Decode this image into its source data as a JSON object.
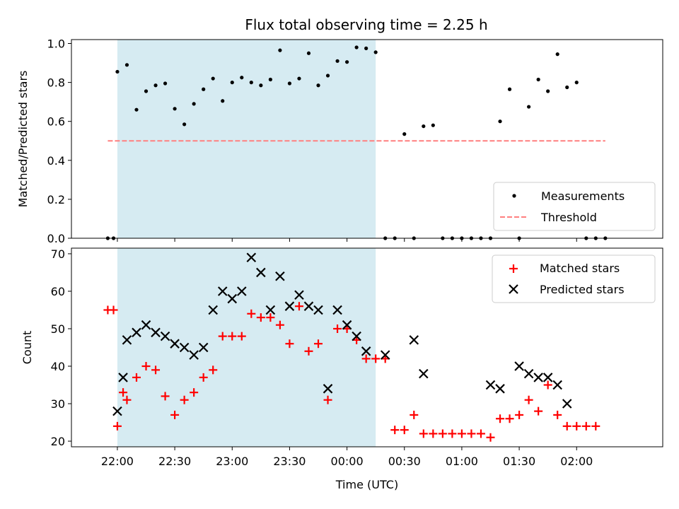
{
  "chart_data": [
    {
      "type": "scatter",
      "title": "Flux total observing time = 2.25 h",
      "ylabel": "Matched/Predicted stars",
      "xlabel": "",
      "ylim": [
        0,
        1.02
      ],
      "yticks": [
        "0.0",
        "0.2",
        "0.4",
        "0.6",
        "0.8",
        "1.0"
      ],
      "ytick_values": [
        0,
        0.2,
        0.4,
        0.6,
        0.8,
        1.0
      ],
      "legend_position": "lower-right",
      "shaded_span": {
        "start": "22:00",
        "end": "00:15",
        "color": "#add8e6"
      },
      "series": [
        {
          "name": "Measurements",
          "marker": "dot",
          "color": "#000000",
          "points": [
            [
              "21:55",
              0.0
            ],
            [
              "21:58",
              0.0
            ],
            [
              "22:00",
              0.855
            ],
            [
              "22:05",
              0.89
            ],
            [
              "22:10",
              0.66
            ],
            [
              "22:15",
              0.755
            ],
            [
              "22:20",
              0.785
            ],
            [
              "22:25",
              0.795
            ],
            [
              "22:30",
              0.665
            ],
            [
              "22:35",
              0.585
            ],
            [
              "22:40",
              0.69
            ],
            [
              "22:45",
              0.765
            ],
            [
              "22:50",
              0.82
            ],
            [
              "22:55",
              0.705
            ],
            [
              "23:00",
              0.8
            ],
            [
              "23:05",
              0.825
            ],
            [
              "23:10",
              0.8
            ],
            [
              "23:15",
              0.785
            ],
            [
              "23:20",
              0.815
            ],
            [
              "23:25",
              0.965
            ],
            [
              "23:30",
              0.795
            ],
            [
              "23:35",
              0.82
            ],
            [
              "23:40",
              0.95
            ],
            [
              "23:45",
              0.785
            ],
            [
              "23:50",
              0.835
            ],
            [
              "23:55",
              0.91
            ],
            [
              "00:00",
              0.905
            ],
            [
              "00:05",
              0.98
            ],
            [
              "00:10",
              0.975
            ],
            [
              "00:15",
              0.955
            ],
            [
              "00:20",
              0.0
            ],
            [
              "00:25",
              0.0
            ],
            [
              "00:30",
              0.535
            ],
            [
              "00:35",
              0.0
            ],
            [
              "00:40",
              0.575
            ],
            [
              "00:45",
              0.58
            ],
            [
              "00:50",
              0.0
            ],
            [
              "00:55",
              0.0
            ],
            [
              "01:00",
              0.0
            ],
            [
              "01:05",
              0.0
            ],
            [
              "01:10",
              0.0
            ],
            [
              "01:15",
              0.0
            ],
            [
              "01:20",
              0.6
            ],
            [
              "01:25",
              0.765
            ],
            [
              "01:30",
              0.0
            ],
            [
              "01:35",
              0.675
            ],
            [
              "01:40",
              0.815
            ],
            [
              "01:45",
              0.755
            ],
            [
              "01:50",
              0.945
            ],
            [
              "01:55",
              0.775
            ],
            [
              "02:00",
              0.8
            ],
            [
              "02:05",
              0.0
            ],
            [
              "02:10",
              0.0
            ],
            [
              "02:15",
              0.0
            ]
          ]
        },
        {
          "name": "Threshold",
          "marker": "dashed-line",
          "color": "#ff7f7f",
          "points": [
            [
              "21:55",
              0.5
            ],
            [
              "02:15",
              0.5
            ]
          ]
        }
      ]
    },
    {
      "type": "scatter",
      "title": "",
      "ylabel": "Count",
      "xlabel": "Time (UTC)",
      "ylim": [
        18.5,
        71.5
      ],
      "yticks": [
        "20",
        "30",
        "40",
        "50",
        "60",
        "70"
      ],
      "ytick_values": [
        20,
        30,
        40,
        50,
        60,
        70
      ],
      "xticks": [
        "22:00",
        "22:30",
        "23:00",
        "23:30",
        "00:00",
        "00:30",
        "01:00",
        "01:30",
        "02:00"
      ],
      "legend_position": "upper-right",
      "shaded_span": {
        "start": "22:00",
        "end": "00:15",
        "color": "#add8e6"
      },
      "series": [
        {
          "name": "Matched stars",
          "marker": "plus",
          "color": "#ff0000",
          "points": [
            [
              "21:55",
              55
            ],
            [
              "21:58",
              55
            ],
            [
              "22:00",
              24
            ],
            [
              "22:03",
              33
            ],
            [
              "22:05",
              31
            ],
            [
              "22:10",
              37
            ],
            [
              "22:15",
              40
            ],
            [
              "22:20",
              39
            ],
            [
              "22:25",
              32
            ],
            [
              "22:30",
              27
            ],
            [
              "22:35",
              31
            ],
            [
              "22:40",
              33
            ],
            [
              "22:45",
              37
            ],
            [
              "22:50",
              39
            ],
            [
              "22:55",
              48
            ],
            [
              "23:00",
              48
            ],
            [
              "23:05",
              48
            ],
            [
              "23:10",
              54
            ],
            [
              "23:15",
              53
            ],
            [
              "23:20",
              53
            ],
            [
              "23:25",
              51
            ],
            [
              "23:30",
              46
            ],
            [
              "23:35",
              56
            ],
            [
              "23:40",
              44
            ],
            [
              "23:45",
              46
            ],
            [
              "23:50",
              31
            ],
            [
              "23:55",
              50
            ],
            [
              "00:00",
              50
            ],
            [
              "00:05",
              47
            ],
            [
              "00:10",
              42
            ],
            [
              "00:15",
              42
            ],
            [
              "00:20",
              42
            ],
            [
              "00:25",
              23
            ],
            [
              "00:30",
              23
            ],
            [
              "00:35",
              27
            ],
            [
              "00:40",
              22
            ],
            [
              "00:45",
              22
            ],
            [
              "00:50",
              22
            ],
            [
              "00:55",
              22
            ],
            [
              "01:00",
              22
            ],
            [
              "01:05",
              22
            ],
            [
              "01:10",
              22
            ],
            [
              "01:15",
              21
            ],
            [
              "01:20",
              26
            ],
            [
              "01:25",
              26
            ],
            [
              "01:30",
              27
            ],
            [
              "01:35",
              31
            ],
            [
              "01:40",
              28
            ],
            [
              "01:45",
              35
            ],
            [
              "01:50",
              27
            ],
            [
              "01:55",
              24
            ],
            [
              "02:00",
              24
            ],
            [
              "02:05",
              24
            ],
            [
              "02:10",
              24
            ]
          ]
        },
        {
          "name": "Predicted stars",
          "marker": "x",
          "color": "#000000",
          "points": [
            [
              "22:00",
              28
            ],
            [
              "22:03",
              37
            ],
            [
              "22:05",
              47
            ],
            [
              "22:10",
              49
            ],
            [
              "22:15",
              51
            ],
            [
              "22:20",
              49
            ],
            [
              "22:25",
              48
            ],
            [
              "22:30",
              46
            ],
            [
              "22:35",
              45
            ],
            [
              "22:40",
              43
            ],
            [
              "22:45",
              45
            ],
            [
              "22:50",
              55
            ],
            [
              "22:55",
              60
            ],
            [
              "23:00",
              58
            ],
            [
              "23:05",
              60
            ],
            [
              "23:10",
              69
            ],
            [
              "23:15",
              65
            ],
            [
              "23:20",
              55
            ],
            [
              "23:25",
              64
            ],
            [
              "23:30",
              56
            ],
            [
              "23:35",
              59
            ],
            [
              "23:40",
              56
            ],
            [
              "23:45",
              55
            ],
            [
              "23:50",
              34
            ],
            [
              "23:55",
              55
            ],
            [
              "00:00",
              51
            ],
            [
              "00:05",
              48
            ],
            [
              "00:10",
              44
            ],
            [
              "00:20",
              43
            ],
            [
              "00:35",
              47
            ],
            [
              "00:40",
              38
            ],
            [
              "01:15",
              35
            ],
            [
              "01:20",
              34
            ],
            [
              "01:30",
              40
            ],
            [
              "01:35",
              38
            ],
            [
              "01:40",
              37
            ],
            [
              "01:45",
              37
            ],
            [
              "01:50",
              35
            ],
            [
              "01:55",
              30
            ]
          ]
        }
      ]
    }
  ]
}
